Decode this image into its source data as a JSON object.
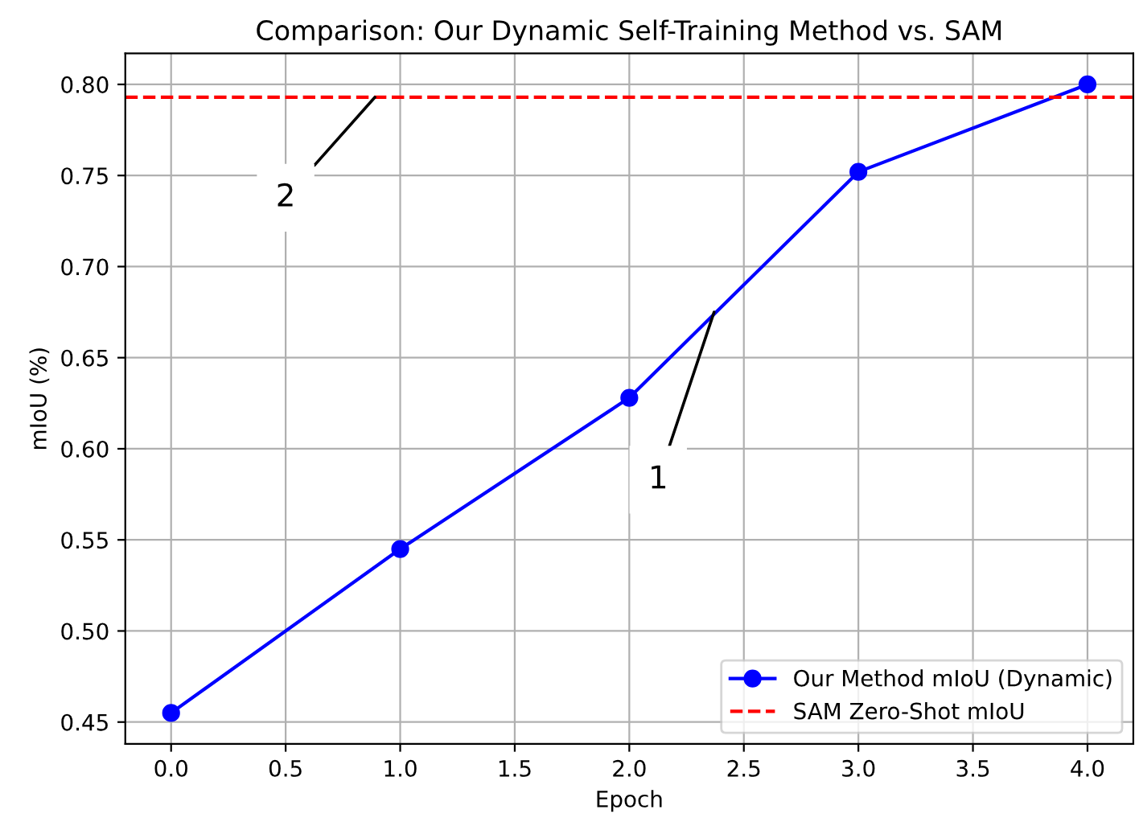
{
  "chart_data": {
    "type": "line",
    "title": "Comparison: Our Dynamic Self-Training Method vs. SAM",
    "xlabel": "Epoch",
    "ylabel": "mIoU (%)",
    "x": [
      0,
      1,
      2,
      3,
      4
    ],
    "series": [
      {
        "name": "Our Method mIoU (Dynamic)",
        "color": "#0000ff",
        "values": [
          0.455,
          0.545,
          0.628,
          0.752,
          0.8
        ],
        "marker": "circle",
        "line_style": "solid"
      }
    ],
    "ref_lines": [
      {
        "axis": "y",
        "value": 0.793,
        "label": "SAM Zero-Shot mIoU",
        "color": "#ff0000",
        "line_style": "dashed"
      }
    ],
    "annotations": [
      {
        "text": "1",
        "x": 2.37,
        "y": 0.675
      },
      {
        "text": "2",
        "x": 0.89,
        "y": 0.793
      }
    ],
    "xlim": [
      -0.2,
      4.2
    ],
    "ylim": [
      0.438,
      0.817
    ],
    "xticks": [
      {
        "value": 0,
        "label": "0.0"
      },
      0.5,
      {
        "value": 1,
        "label": "1.0"
      },
      1.5,
      {
        "value": 2,
        "label": "2.0"
      },
      2.5,
      {
        "value": 3,
        "label": "3.0"
      },
      3.5,
      {
        "value": 4,
        "label": "4.0"
      }
    ],
    "yticks": [
      {
        "value": 0.45,
        "label": "0.45"
      },
      {
        "value": 0.5,
        "label": "0.50"
      },
      {
        "value": 0.55,
        "label": "0.55"
      },
      {
        "value": 0.6,
        "label": "0.60"
      },
      {
        "value": 0.65,
        "label": "0.65"
      },
      {
        "value": 0.7,
        "label": "0.70"
      },
      {
        "value": 0.75,
        "label": "0.75"
      },
      {
        "value": 0.8,
        "label": "0.80"
      }
    ],
    "grid": true,
    "legend": "bottom right"
  }
}
